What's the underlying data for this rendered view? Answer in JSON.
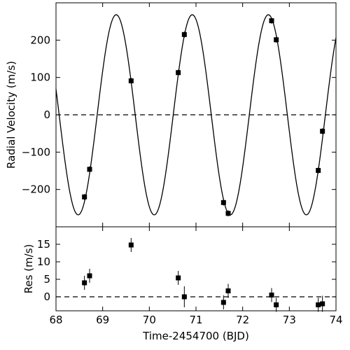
{
  "chart_data": [
    {
      "type": "scatter",
      "title": "",
      "xlabel": "",
      "ylabel": "Radial Velocity (m/s)",
      "xlim": [
        68,
        74
      ],
      "ylim": [
        -300,
        300
      ],
      "yticks": [
        -200,
        -100,
        0,
        100,
        200
      ],
      "reference_line": 0,
      "model_curve": {
        "amplitude": 268,
        "period": 1.63,
        "phase_ref_time": 69.29
      },
      "series": [
        {
          "x": [
            68.61,
            68.72,
            69.61,
            70.62,
            70.75,
            71.59,
            71.69,
            72.62,
            72.72,
            73.62,
            73.71
          ],
          "y": [
            -220,
            -146,
            91,
            113,
            215,
            -235,
            -264,
            252,
            201,
            -149,
            -44
          ],
          "err": [
            8,
            8,
            8,
            8,
            8,
            8,
            8,
            8,
            8,
            8,
            8
          ]
        }
      ]
    },
    {
      "type": "scatter",
      "title": "",
      "xlabel": "Time-2454700 (BJD)",
      "ylabel": "Res (m/s)",
      "xlim": [
        68,
        74
      ],
      "ylim": [
        -4,
        20
      ],
      "xticks": [
        68,
        69,
        70,
        71,
        72,
        73,
        74
      ],
      "yticks": [
        0,
        5,
        10,
        15
      ],
      "reference_line": 0,
      "series": [
        {
          "x": [
            68.61,
            68.72,
            69.61,
            70.62,
            70.75,
            71.59,
            71.69,
            72.62,
            72.72,
            73.62,
            73.71
          ],
          "y": [
            4,
            6,
            14.8,
            5.4,
            0,
            -1.6,
            1.7,
            0.5,
            -2.3,
            -2.3,
            -2
          ],
          "err": [
            2,
            2,
            2,
            2,
            3,
            2,
            2,
            2,
            2,
            2,
            2.3
          ]
        }
      ]
    }
  ]
}
